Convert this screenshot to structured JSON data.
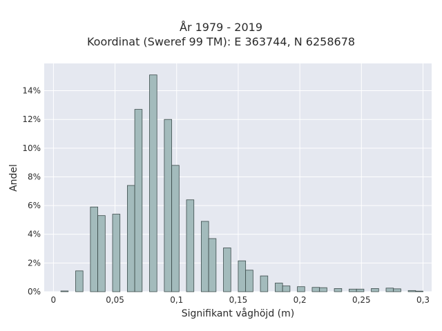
{
  "chart_data": {
    "type": "bar",
    "title_lines": [
      "År 1979 - 2019",
      "Koordinat (Sweref 99 TM): E 363744, N 6258678"
    ],
    "xlabel": "Signifikant våghöjd (m)",
    "ylabel": "Andel",
    "xlim": [
      -0.0075,
      0.307
    ],
    "ylim": [
      0,
      0.159
    ],
    "xticks": [
      0,
      0.05,
      0.1,
      0.15,
      0.2,
      0.25,
      0.3
    ],
    "xtick_labels": [
      "0",
      "0,05",
      "0,1",
      "0,15",
      "0,2",
      "0,25",
      "0,3"
    ],
    "yticks": [
      0,
      0.02,
      0.04,
      0.06,
      0.08,
      0.1,
      0.12,
      0.14
    ],
    "ytick_labels": [
      "0%",
      "2%",
      "4%",
      "6%",
      "8%",
      "10%",
      "12%",
      "14%"
    ],
    "bar_width": 0.006,
    "grid": true,
    "colors": {
      "plot_bg": "#e5e8f0",
      "grid": "#ffffff",
      "bar_fill": "#a3bbbc",
      "bar_stroke": "#3b4a4a"
    },
    "bars": [
      {
        "x": 0.009,
        "y": 0.0005
      },
      {
        "x": 0.021,
        "y": 0.0145
      },
      {
        "x": 0.033,
        "y": 0.059
      },
      {
        "x": 0.039,
        "y": 0.053
      },
      {
        "x": 0.051,
        "y": 0.054
      },
      {
        "x": 0.063,
        "y": 0.074
      },
      {
        "x": 0.069,
        "y": 0.127
      },
      {
        "x": 0.081,
        "y": 0.151
      },
      {
        "x": 0.093,
        "y": 0.12
      },
      {
        "x": 0.099,
        "y": 0.088
      },
      {
        "x": 0.111,
        "y": 0.064
      },
      {
        "x": 0.123,
        "y": 0.049
      },
      {
        "x": 0.129,
        "y": 0.037
      },
      {
        "x": 0.141,
        "y": 0.0305
      },
      {
        "x": 0.153,
        "y": 0.0215
      },
      {
        "x": 0.159,
        "y": 0.015
      },
      {
        "x": 0.171,
        "y": 0.011
      },
      {
        "x": 0.183,
        "y": 0.006
      },
      {
        "x": 0.189,
        "y": 0.004
      },
      {
        "x": 0.201,
        "y": 0.0035
      },
      {
        "x": 0.213,
        "y": 0.003
      },
      {
        "x": 0.219,
        "y": 0.0028
      },
      {
        "x": 0.231,
        "y": 0.0022
      },
      {
        "x": 0.243,
        "y": 0.0018
      },
      {
        "x": 0.249,
        "y": 0.0018
      },
      {
        "x": 0.261,
        "y": 0.0022
      },
      {
        "x": 0.273,
        "y": 0.0025
      },
      {
        "x": 0.279,
        "y": 0.002
      },
      {
        "x": 0.291,
        "y": 0.0008
      },
      {
        "x": 0.297,
        "y": 0.0004
      }
    ]
  }
}
